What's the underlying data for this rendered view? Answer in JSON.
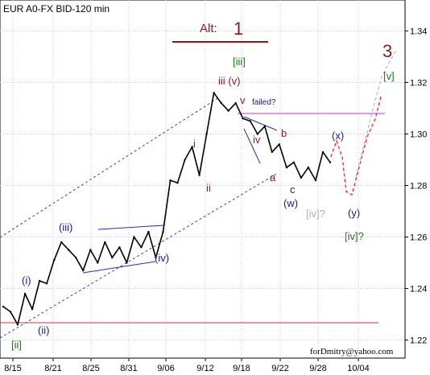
{
  "chart_data": {
    "type": "line",
    "title": "EUR A0-FX BID-120 min",
    "y_axis": {
      "side": "right",
      "ylim": [
        1.213,
        1.352
      ],
      "ticks": [
        "1.34",
        "1.32",
        "1.30",
        "1.28",
        "1.26",
        "1.24",
        "1.22"
      ]
    },
    "x_axis": {
      "ticks": [
        "8/15",
        "8/21",
        "8/25",
        "8/31",
        "9/06",
        "9/12",
        "9/18",
        "9/22",
        "9/28",
        "10/04"
      ]
    },
    "grid": true,
    "x": [
      "8/15",
      "8/16",
      "8/17",
      "8/18",
      "8/19",
      "8/20",
      "8/21",
      "8/22",
      "8/23",
      "8/24",
      "8/25",
      "8/26",
      "8/27",
      "8/28",
      "8/29",
      "8/30",
      "8/31",
      "9/01",
      "9/02",
      "9/03",
      "9/04",
      "9/05",
      "9/06",
      "9/07",
      "9/08",
      "9/09",
      "9/10",
      "9/11",
      "9/12",
      "9/13",
      "9/14",
      "9/15",
      "9/16",
      "9/17",
      "9/18",
      "9/19",
      "9/20",
      "9/21",
      "9/22",
      "9/23",
      "9/24",
      "9/25",
      "9/26",
      "9/27",
      "9/28",
      "9/29"
    ],
    "series": [
      {
        "values": [
          1.233,
          1.231,
          1.226,
          1.238,
          1.232,
          1.243,
          1.242,
          1.251,
          1.258,
          1.255,
          1.252,
          1.247,
          1.255,
          1.25,
          1.258,
          1.252,
          1.256,
          1.25,
          1.26,
          1.256,
          1.262,
          1.252,
          1.262,
          1.282,
          1.281,
          1.29,
          1.295,
          1.284,
          1.3,
          1.316,
          1.312,
          1.309,
          1.312,
          1.306,
          1.305,
          1.3,
          1.303,
          1.293,
          1.296,
          1.287,
          1.289,
          1.283,
          1.287,
          1.282,
          1.293,
          1.289
        ]
      }
    ],
    "annotations": {
      "alt_label": "Alt:",
      "alt_number": "1",
      "big_label": "3",
      "wave_labels": [
        "[ii]",
        "(i)",
        "(ii)",
        "(iii)",
        "(iv)",
        "i",
        "ii",
        "iii (v)",
        "[iii]",
        "iv",
        "v",
        "failed?",
        "a",
        "b",
        "c",
        "(w)",
        "(x)",
        "(y)",
        "[iv]?",
        "[iv]?",
        "[v]"
      ],
      "watermark": "forDmitry@yahoo.com"
    }
  }
}
